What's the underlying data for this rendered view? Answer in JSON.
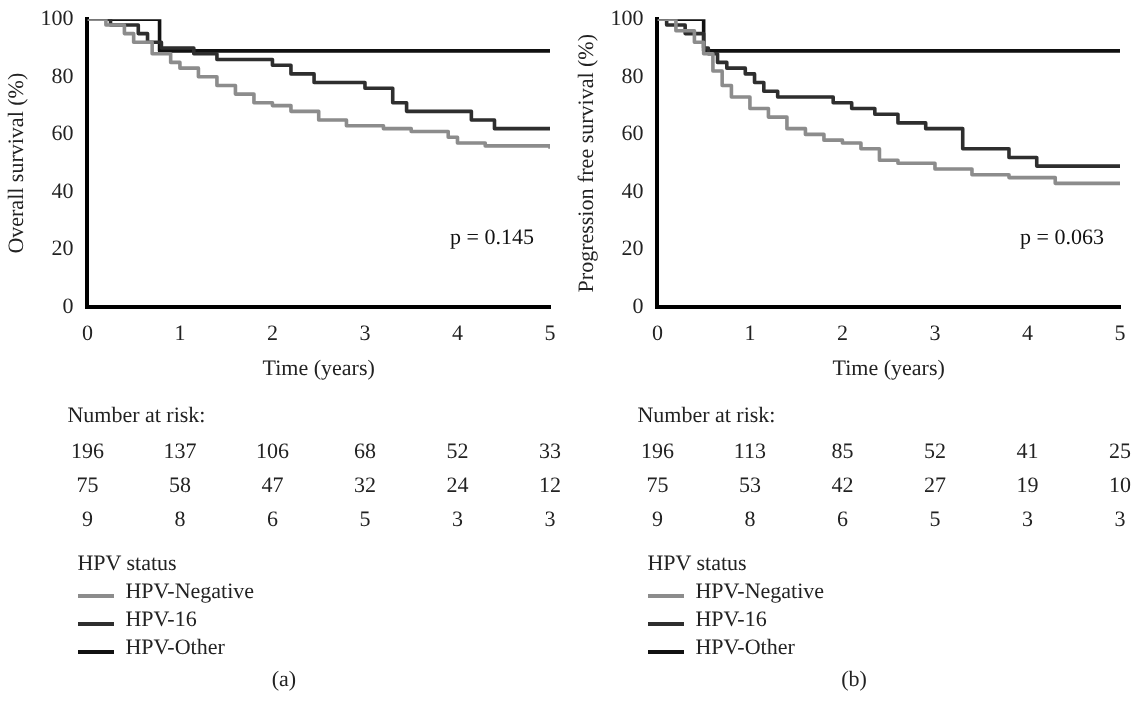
{
  "chart_data": [
    {
      "type": "step",
      "ylabel": "Overall survival (%)",
      "xlabel": "Time (years)",
      "xlim": [
        0,
        5
      ],
      "xticks": [
        0,
        1,
        2,
        3,
        4,
        5
      ],
      "ylim": [
        0,
        100
      ],
      "yticks": [
        0,
        20,
        40,
        60,
        80,
        100
      ],
      "grid": false,
      "legend": "bottom",
      "legend_title": "HPV status",
      "marker": "none",
      "series": [
        {
          "name": "HPV-Negative",
          "color": "#8c8c8c",
          "x": [
            0,
            0.2,
            0.4,
            0.5,
            0.7,
            0.9,
            1.0,
            1.2,
            1.4,
            1.6,
            1.8,
            2.0,
            2.2,
            2.5,
            2.8,
            3.2,
            3.5,
            3.9,
            4.0,
            4.3,
            5
          ],
          "values": [
            100,
            98,
            95,
            92,
            88,
            85,
            83,
            80,
            77,
            74,
            71,
            70,
            68,
            65,
            63,
            62,
            61,
            59,
            57,
            56,
            55
          ]
        },
        {
          "name": "HPV-16",
          "color": "#2e2e2e",
          "x": [
            0,
            0.25,
            0.55,
            0.65,
            0.8,
            1.15,
            1.4,
            2.0,
            2.2,
            2.45,
            3.0,
            3.3,
            3.45,
            4.15,
            4.4,
            5
          ],
          "values": [
            100,
            98,
            95,
            92,
            90,
            88,
            86,
            84,
            81,
            78,
            76,
            71,
            68,
            65,
            62,
            62
          ]
        },
        {
          "name": "HPV-Other",
          "color": "#111111",
          "x": [
            0,
            0.78,
            5
          ],
          "values": [
            100,
            89,
            89
          ]
        }
      ],
      "annotations": [
        "p = 0.145",
        "Number at risk:",
        "196 137 106 68 52 33",
        "75 58 47 32 24 12",
        "9 8 6 5 3 3",
        "(a)"
      ]
    },
    {
      "type": "step",
      "ylabel": "Progression free survival (%)",
      "xlabel": "Time (years)",
      "xlim": [
        0,
        5
      ],
      "xticks": [
        0,
        1,
        2,
        3,
        4,
        5
      ],
      "ylim": [
        0,
        100
      ],
      "yticks": [
        0,
        20,
        40,
        60,
        80,
        100
      ],
      "grid": false,
      "legend": "bottom",
      "legend_title": "HPV status",
      "marker": "none",
      "series": [
        {
          "name": "HPV-Negative",
          "color": "#8c8c8c",
          "x": [
            0,
            0.2,
            0.4,
            0.5,
            0.6,
            0.7,
            0.8,
            1.0,
            1.2,
            1.4,
            1.6,
            1.8,
            2.0,
            2.2,
            2.4,
            2.6,
            3.0,
            3.4,
            3.8,
            4.3,
            5
          ],
          "values": [
            100,
            96,
            92,
            88,
            82,
            77,
            73,
            69,
            66,
            62,
            60,
            58,
            57,
            55,
            51,
            50,
            48,
            46,
            45,
            43,
            43
          ]
        },
        {
          "name": "HPV-16",
          "color": "#2e2e2e",
          "x": [
            0,
            0.1,
            0.3,
            0.5,
            0.55,
            0.65,
            0.75,
            0.95,
            1.05,
            1.15,
            1.3,
            1.9,
            2.1,
            2.35,
            2.6,
            2.9,
            3.3,
            3.8,
            4.1,
            5
          ],
          "values": [
            100,
            98,
            95,
            90,
            88,
            85,
            83,
            81,
            78,
            75,
            73,
            71,
            69,
            67,
            64,
            62,
            55,
            52,
            49,
            49
          ]
        },
        {
          "name": "HPV-Other",
          "color": "#111111",
          "x": [
            0,
            0.5,
            5
          ],
          "values": [
            100,
            89,
            89
          ]
        }
      ],
      "annotations": [
        "p = 0.063",
        "Number at risk:",
        "196 113 85 52 41 25",
        "75 53 42 27 19 10",
        "9 8 6 5 3 3",
        "(b)"
      ]
    }
  ]
}
